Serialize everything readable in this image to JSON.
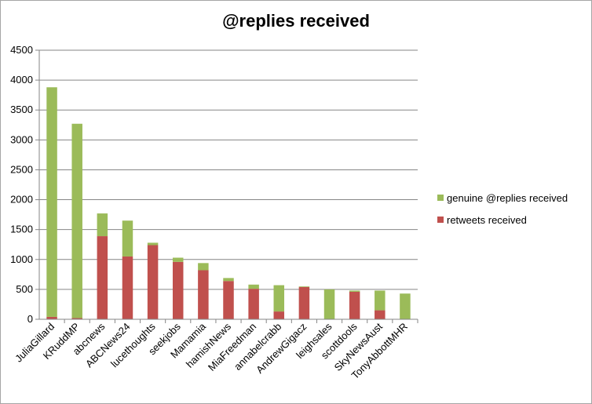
{
  "chart_data": {
    "type": "bar",
    "stacked": true,
    "title": "@replies received",
    "xlabel": "",
    "ylabel": "",
    "ylim": [
      0,
      4500
    ],
    "yticks": [
      0,
      500,
      1000,
      1500,
      2000,
      2500,
      3000,
      3500,
      4000,
      4500
    ],
    "grid": true,
    "legend_position": "right",
    "categories": [
      "JuliaGillard",
      "KRuddMP",
      "abcnews",
      "ABCNews24",
      "lucethoughts",
      "seekjobs",
      "Mamamia",
      "hamishNews",
      "MiaFreedman",
      "annabelcrabb",
      "AndrewGigacz",
      "leighsales",
      "scottdools",
      "SkyNewsAust",
      "TonyAbbottMHR"
    ],
    "series": [
      {
        "name": "retweets received",
        "color": "#c0504d",
        "values": [
          40,
          20,
          1390,
          1050,
          1240,
          960,
          820,
          640,
          510,
          130,
          540,
          0,
          460,
          150,
          0
        ]
      },
      {
        "name": "genuine @replies received",
        "color": "#9bbb59",
        "values": [
          3840,
          3250,
          380,
          600,
          40,
          70,
          120,
          50,
          70,
          440,
          10,
          500,
          20,
          330,
          430
        ]
      }
    ],
    "legend_order": [
      "genuine @replies received",
      "retweets received"
    ]
  }
}
